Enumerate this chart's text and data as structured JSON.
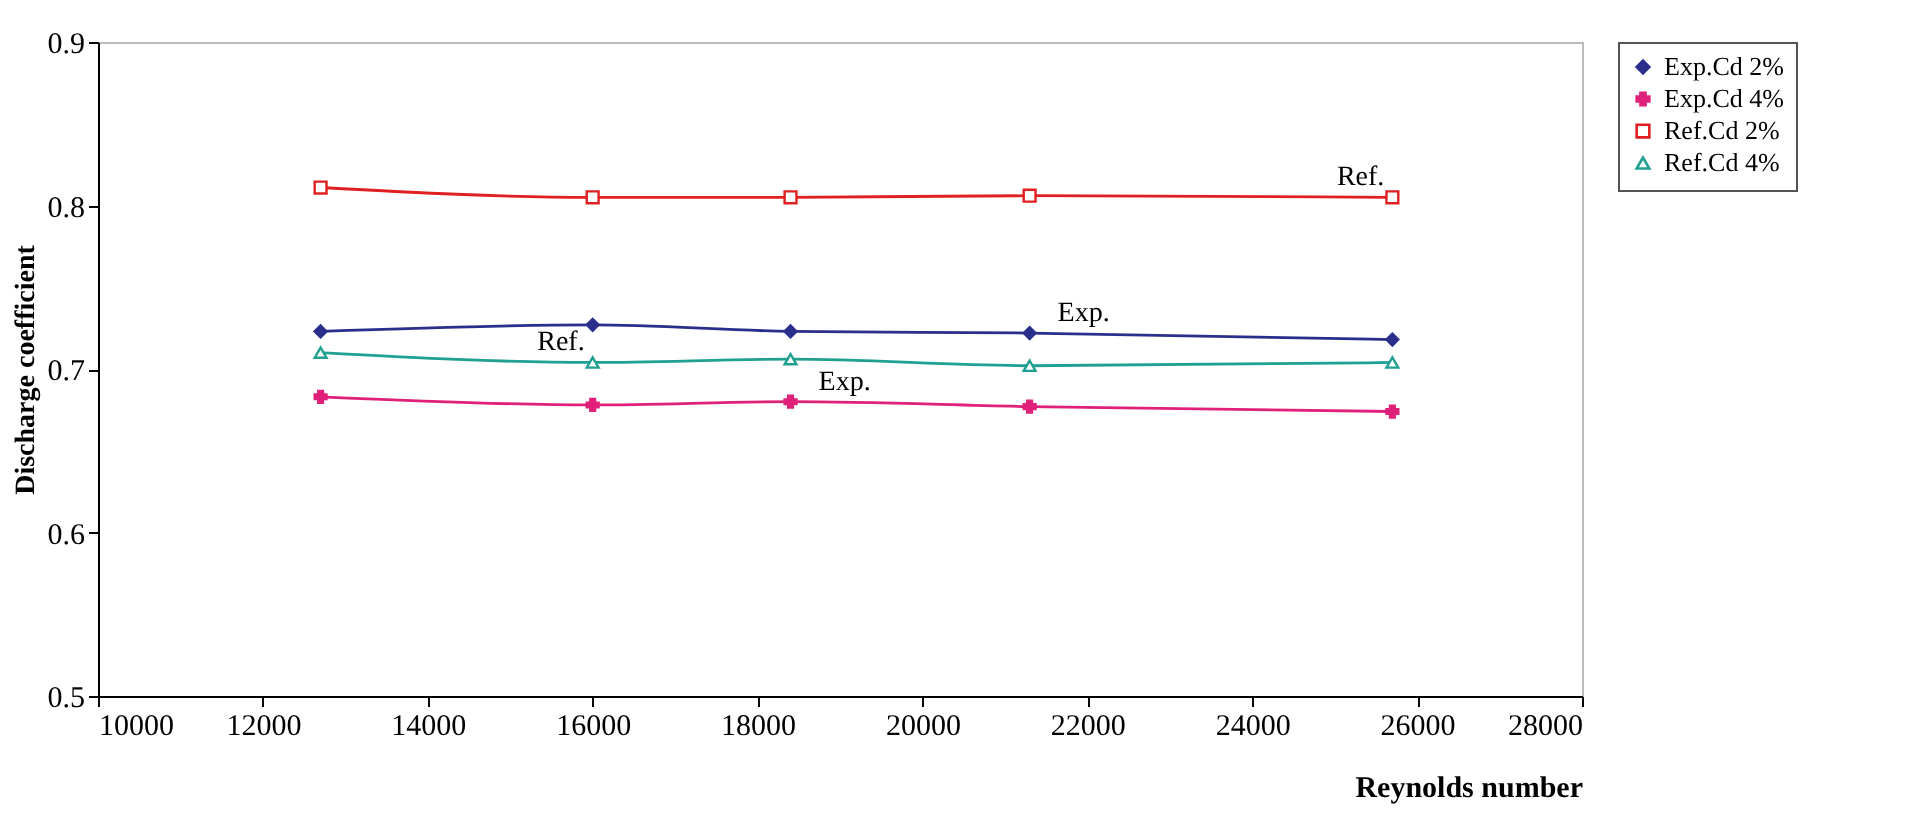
{
  "chart_data": {
    "type": "line",
    "xlabel": "Reynolds number",
    "ylabel": "Discharge coefficient",
    "x": [
      12700,
      16000,
      18400,
      21300,
      25700
    ],
    "xlim": [
      10000,
      28000
    ],
    "xticks": [
      10000,
      12000,
      14000,
      16000,
      18000,
      20000,
      22000,
      24000,
      26000,
      28000
    ],
    "ylim": [
      0.5,
      0.9
    ],
    "yticks": [
      0.5,
      0.6,
      0.7,
      0.8,
      0.9
    ],
    "grid": false,
    "legend": "right",
    "series": [
      {
        "name": "Exp.Cd 2%",
        "color": "#2b2f8c",
        "marker": "diamond",
        "values": [
          0.723,
          0.727,
          0.723,
          0.722,
          0.718
        ]
      },
      {
        "name": "Exp.Cd 4%",
        "color": "#e0207a",
        "marker": "cross",
        "values": [
          0.683,
          0.678,
          0.68,
          0.677,
          0.674
        ]
      },
      {
        "name": "Ref.Cd 2%",
        "color": "#e02020",
        "marker": "square",
        "values": [
          0.811,
          0.805,
          0.805,
          0.806,
          0.805
        ]
      },
      {
        "name": "Ref.Cd 4%",
        "color": "#20a090",
        "marker": "triangle",
        "values": [
          0.71,
          0.704,
          0.706,
          0.702,
          0.704
        ]
      }
    ],
    "annotations": [
      {
        "text": "Ref.",
        "x": 25700,
        "y": 0.805
      },
      {
        "text": "Exp.",
        "x": 21300,
        "y": 0.722
      },
      {
        "text": "Ref.",
        "x": 16000,
        "y": 0.704
      },
      {
        "text": "Exp.",
        "x": 18400,
        "y": 0.68
      }
    ]
  }
}
